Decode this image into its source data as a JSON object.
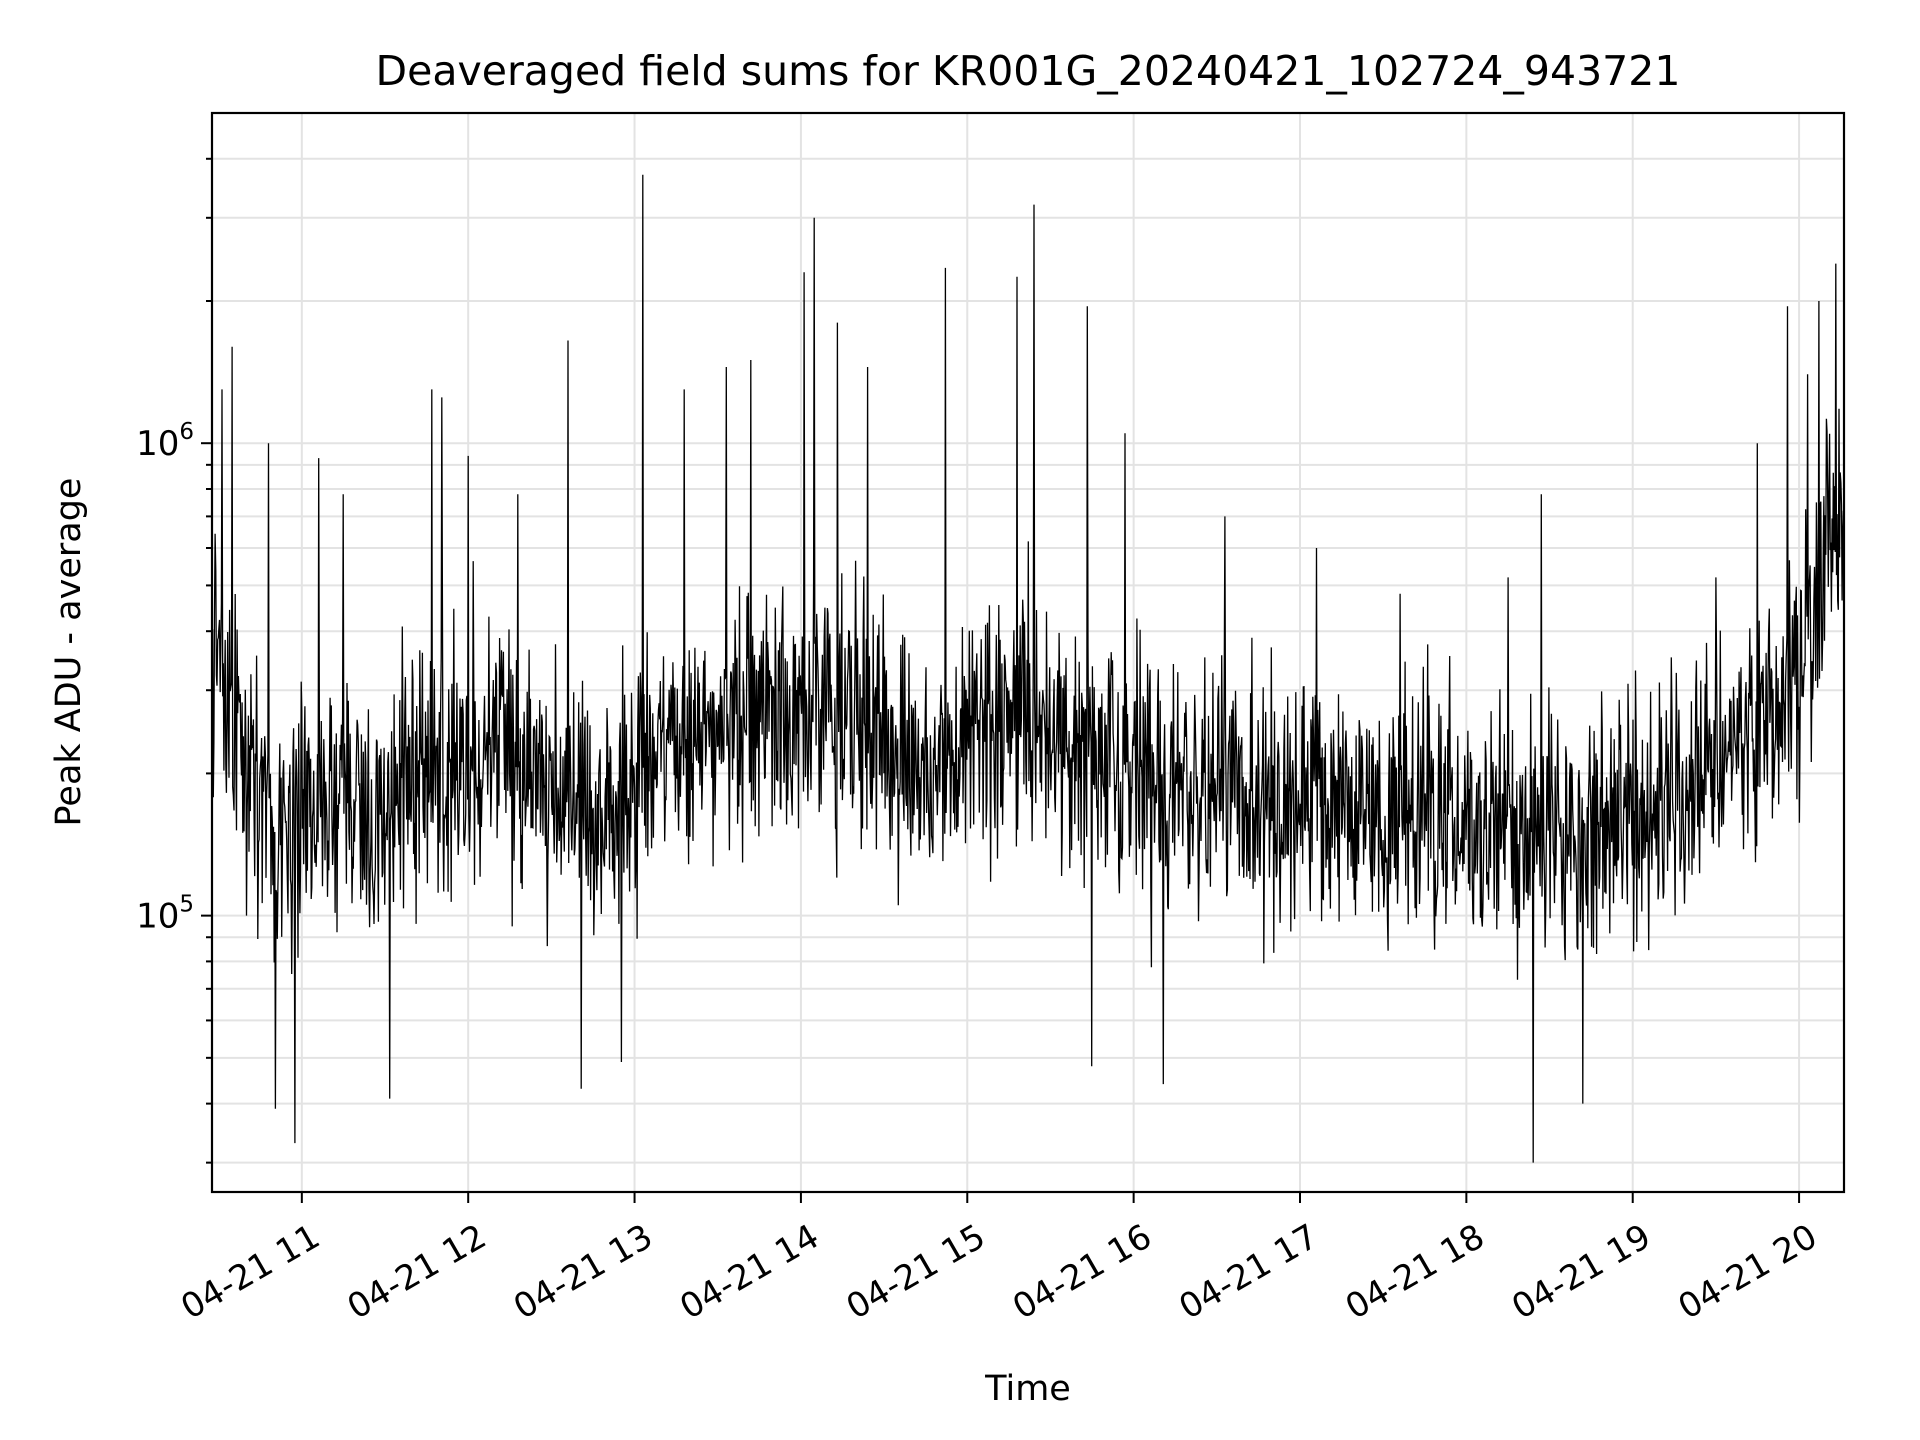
{
  "chart_data": {
    "type": "line",
    "title": "Deaveraged field sums for KR001G_20240421_102724_943721",
    "xlabel": "Time",
    "ylabel": "Peak ADU - average",
    "yscale": "log",
    "grid": true,
    "line_color": "#000000",
    "x_tick_labels": [
      "04-21 11",
      "04-21 12",
      "04-21 13",
      "04-21 14",
      "04-21 15",
      "04-21 16",
      "04-21 17",
      "04-21 18",
      "04-21 19",
      "04-21 20"
    ],
    "y_tick_labels": [
      {
        "value": 100000,
        "base": "10",
        "exp": "5"
      },
      {
        "value": 1000000,
        "base": "10",
        "exp": "6"
      }
    ],
    "xlim_hours": [
      10.46,
      20.27
    ],
    "ylim": [
      26000,
      5000000
    ],
    "series": [
      {
        "x_hours": [
          10.46,
          10.55,
          10.7,
          10.85,
          11.0,
          11.2,
          11.4,
          11.6,
          11.8,
          12.0,
          12.2,
          12.4,
          12.6,
          12.8,
          13.0,
          13.2,
          13.4,
          13.6,
          13.8,
          14.0,
          14.2,
          14.4,
          14.6,
          14.8,
          15.0,
          15.2,
          15.4,
          15.6,
          15.8,
          16.0,
          16.2,
          16.4,
          16.6,
          16.8,
          17.0,
          17.2,
          17.4,
          17.6,
          17.8,
          18.0,
          18.2,
          18.4,
          18.6,
          18.8,
          19.0,
          19.2,
          19.4,
          19.6,
          19.8,
          20.0,
          20.15,
          20.27
        ],
        "median": [
          380000,
          260000,
          190000,
          140000,
          150000,
          170000,
          160000,
          180000,
          200000,
          210000,
          230000,
          190000,
          170000,
          160000,
          190000,
          230000,
          250000,
          260000,
          270000,
          280000,
          260000,
          240000,
          220000,
          210000,
          220000,
          240000,
          250000,
          240000,
          220000,
          200000,
          190000,
          180000,
          190000,
          180000,
          175000,
          170000,
          165000,
          165000,
          160000,
          160000,
          155000,
          150000,
          155000,
          160000,
          160000,
          165000,
          200000,
          230000,
          240000,
          300000,
          600000,
          800000
        ],
        "peaks": [
          {
            "x": 10.52,
            "y": 1300000
          },
          {
            "x": 10.58,
            "y": 1600000
          },
          {
            "x": 10.8,
            "y": 1000000
          },
          {
            "x": 10.84,
            "y": 39000
          },
          {
            "x": 10.96,
            "y": 33000
          },
          {
            "x": 11.1,
            "y": 930000
          },
          {
            "x": 11.25,
            "y": 780000
          },
          {
            "x": 11.53,
            "y": 41000
          },
          {
            "x": 11.78,
            "y": 1300000
          },
          {
            "x": 11.84,
            "y": 1250000
          },
          {
            "x": 12.0,
            "y": 940000
          },
          {
            "x": 12.3,
            "y": 780000
          },
          {
            "x": 12.6,
            "y": 1650000
          },
          {
            "x": 12.68,
            "y": 43000
          },
          {
            "x": 12.92,
            "y": 49000
          },
          {
            "x": 13.05,
            "y": 3700000
          },
          {
            "x": 13.3,
            "y": 1300000
          },
          {
            "x": 13.55,
            "y": 1450000
          },
          {
            "x": 13.7,
            "y": 1500000
          },
          {
            "x": 14.02,
            "y": 2300000
          },
          {
            "x": 14.08,
            "y": 3000000
          },
          {
            "x": 14.22,
            "y": 1800000
          },
          {
            "x": 14.4,
            "y": 1450000
          },
          {
            "x": 14.87,
            "y": 2350000
          },
          {
            "x": 15.3,
            "y": 2250000
          },
          {
            "x": 15.4,
            "y": 3200000
          },
          {
            "x": 15.72,
            "y": 1950000
          },
          {
            "x": 15.75,
            "y": 48000
          },
          {
            "x": 15.95,
            "y": 1050000
          },
          {
            "x": 16.18,
            "y": 44000
          },
          {
            "x": 16.55,
            "y": 700000
          },
          {
            "x": 17.1,
            "y": 600000
          },
          {
            "x": 17.6,
            "y": 480000
          },
          {
            "x": 18.25,
            "y": 520000
          },
          {
            "x": 18.4,
            "y": 30000
          },
          {
            "x": 18.45,
            "y": 780000
          },
          {
            "x": 18.7,
            "y": 40000
          },
          {
            "x": 19.5,
            "y": 520000
          },
          {
            "x": 19.75,
            "y": 1000000
          },
          {
            "x": 19.93,
            "y": 1950000
          },
          {
            "x": 20.05,
            "y": 1400000
          },
          {
            "x": 20.12,
            "y": 2000000
          },
          {
            "x": 20.22,
            "y": 2400000
          }
        ]
      }
    ]
  }
}
